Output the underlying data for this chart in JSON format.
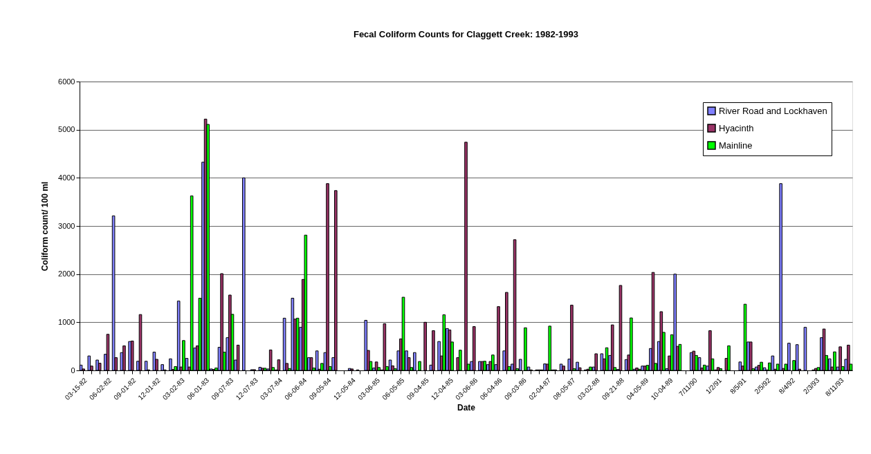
{
  "chart_data": {
    "type": "bar",
    "title": "Fecal Coliform Counts for Claggett Creek: 1982-1993",
    "xlabel": "Date",
    "ylabel": "Coliform count/ 100 ml",
    "categories": [
      "03-15-82",
      null,
      null,
      "06-02-82",
      null,
      null,
      "09-01-82",
      null,
      null,
      "12-01-82",
      null,
      null,
      "03-02-83",
      null,
      null,
      "06-01-83",
      null,
      null,
      "09-07-83",
      null,
      null,
      "12-07-83",
      null,
      null,
      "03-07-84",
      null,
      null,
      "06-06-84",
      null,
      null,
      "09-05-84",
      null,
      null,
      "12-05-84",
      null,
      null,
      "03-06-85",
      null,
      null,
      "06-05-85",
      null,
      null,
      "09-04-85",
      null,
      null,
      "12-04-85",
      null,
      null,
      "03-06-86",
      null,
      null,
      "06-04-86",
      null,
      null,
      "09-03-86",
      null,
      null,
      "02-04-87",
      null,
      null,
      "08-05-87",
      null,
      null,
      "03-02-88",
      null,
      null,
      "09-21-88",
      null,
      null,
      "04-05-89",
      null,
      null,
      "10-04-89",
      null,
      null,
      "7/11/90",
      null,
      null,
      "1/2/91",
      null,
      null,
      "8/5/91",
      null,
      null,
      "2/5/92",
      null,
      null,
      "8/4/92",
      null,
      null,
      "2/3/93",
      null,
      null,
      "8/11/93",
      null
    ],
    "series": [
      {
        "name": "River Road and Lockhaven",
        "color": "#8080ff",
        "values": [
          110,
          300,
          215,
          335,
          3210,
          370,
          600,
          190,
          190,
          380,
          120,
          240,
          1440,
          250,
          465,
          4325,
          30,
          480,
          680,
          215,
          4000,
          15,
          65,
          30,
          10,
          1085,
          1500,
          895,
          265,
          405,
          370,
          265,
          null,
          40,
          10,
          1040,
          50,
          10,
          215,
          405,
          405,
          370,
          null,
          110,
          600,
          870,
          null,
          null,
          185,
          185,
          120,
          120,
          405,
          130,
          230,
          70,
          10,
          135,
          10,
          130,
          235,
          170,
          10,
          70,
          345,
          310,
          20,
          225,
          25,
          90,
          455,
          600,
          35,
          2000,
          null,
          370,
          265,
          90,
          10,
          null,
          null,
          175,
          590,
          70,
          55,
          300,
          3880,
          565,
          535,
          895,
          10,
          680,
          240,
          70,
          230
        ]
      },
      {
        "name": "Hyacinth",
        "color": "#993366",
        "values": [
          30,
          90,
          150,
          750,
          265,
          510,
          610,
          1160,
          10,
          230,
          10,
          20,
          70,
          70,
          510,
          5220,
          20,
          2010,
          1565,
          525,
          null,
          15,
          45,
          425,
          220,
          145,
          1065,
          1890,
          265,
          25,
          3880,
          3735,
          null,
          30,
          null,
          415,
          175,
          970,
          95,
          655,
          265,
          null,
          1000,
          825,
          300,
          840,
          265,
          4740,
          910,
          185,
          185,
          1325,
          1620,
          2715,
          null,
          10,
          10,
          130,
          10,
          90,
          1355,
          55,
          25,
          345,
          240,
          945,
          1765,
          320,
          50,
          90,
          2035,
          1220,
          300,
          500,
          null,
          400,
          50,
          825,
          60,
          250,
          null,
          90,
          590,
          105,
          10,
          25,
          40,
          null,
          25,
          null,
          40,
          860,
          70,
          490,
          525
        ]
      },
      {
        "name": "Mainline",
        "color": "#00ff00",
        "values": [
          null,
          null,
          null,
          null,
          null,
          null,
          null,
          null,
          null,
          null,
          null,
          80,
          620,
          3625,
          1500,
          5110,
          50,
          380,
          1165,
          null,
          null,
          null,
          45,
          60,
          null,
          40,
          1085,
          2810,
          50,
          145,
          80,
          null,
          null,
          null,
          null,
          185,
          60,
          80,
          35,
          1520,
          60,
          185,
          null,
          null,
          1155,
          590,
          420,
          130,
          null,
          190,
          320,
          null,
          80,
          35,
          885,
          null,
          10,
          920,
          null,
          null,
          35,
          null,
          70,
          null,
          470,
          60,
          null,
          1090,
          25,
          105,
          145,
          790,
          740,
          540,
          null,
          310,
          110,
          240,
          35,
          510,
          null,
          1375,
          35,
          170,
          155,
          130,
          130,
          205,
          null,
          null,
          60,
          310,
          385,
          80,
          130
        ]
      }
    ],
    "ylim": [
      0,
      6000
    ],
    "yticks": [
      0,
      1000,
      2000,
      3000,
      4000,
      5000,
      6000
    ],
    "grid": "y",
    "legend": "top right"
  }
}
